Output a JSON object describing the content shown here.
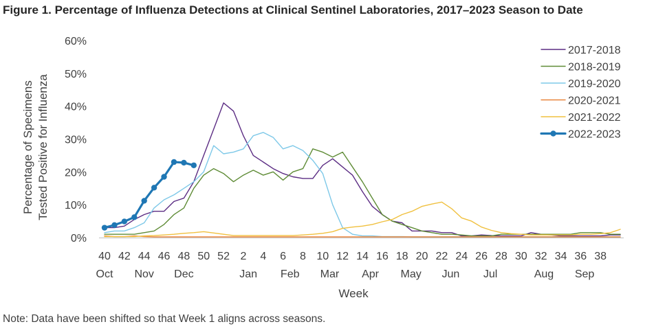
{
  "figure": {
    "title": "Figure 1. Percentage of Influenza Detections at Clinical Sentinel Laboratories, 2017–2023 Season to Date",
    "note": "Note: Data have been shifted so that Week 1 aligns across seasons."
  },
  "chart_data": {
    "type": "line",
    "title": "Figure 1. Percentage of Influenza Detections at Clinical Sentinel Laboratories, 2017–2023 Season to Date",
    "xlabel": "Week",
    "ylabel_lines": [
      "Percentage of Specimens",
      "Tested Positive for Influenza"
    ],
    "ylim": [
      0,
      60
    ],
    "y_ticks": [
      0,
      10,
      20,
      30,
      40,
      50,
      60
    ],
    "y_tick_labels": [
      "0%",
      "10%",
      "20%",
      "30%",
      "40%",
      "50%",
      "60%"
    ],
    "x_count": 53,
    "x_tick_labels": [
      "40",
      "42",
      "44",
      "46",
      "48",
      "50",
      "52",
      "2",
      "4",
      "6",
      "8",
      "10",
      "12",
      "14",
      "16",
      "18",
      "20",
      "22",
      "24",
      "26",
      "28",
      "30",
      "32",
      "34",
      "36",
      "38"
    ],
    "month_labels": [
      {
        "label": "Oct",
        "at": 0
      },
      {
        "label": "Nov",
        "at": 4
      },
      {
        "label": "Dec",
        "at": 8
      },
      {
        "label": "Jan",
        "at": 14.5
      },
      {
        "label": "Feb",
        "at": 18.7
      },
      {
        "label": "Mar",
        "at": 22.7
      },
      {
        "label": "Apr",
        "at": 26.8
      },
      {
        "label": "May",
        "at": 30.9
      },
      {
        "label": "Jun",
        "at": 34.9
      },
      {
        "label": "Jul",
        "at": 38.9
      },
      {
        "label": "Aug",
        "at": 44.3
      },
      {
        "label": "Sep",
        "at": 48.4
      }
    ],
    "legend_position": "top-right",
    "series": [
      {
        "name": "2017-2018",
        "color": "#5B2C83",
        "width": 1.4,
        "markers": false,
        "values": [
          3,
          3,
          3.5,
          5.5,
          7,
          8,
          8,
          11,
          12,
          17,
          25,
          33,
          41,
          38.5,
          31,
          25,
          23,
          21,
          19.5,
          18.5,
          18,
          18,
          22,
          24,
          21.5,
          19,
          14,
          9.5,
          7,
          5,
          4.5,
          2,
          2,
          2,
          1.5,
          1.5,
          0.5,
          0.5,
          0.8,
          0.6,
          0.5,
          0.5,
          0.5,
          1.5,
          1,
          0.8,
          0.5,
          0.5,
          0.5,
          0.5,
          0.5,
          0.8,
          0.8
        ]
      },
      {
        "name": "2018-2019",
        "color": "#5E8B35",
        "width": 1.4,
        "markers": false,
        "values": [
          1,
          1,
          1,
          1,
          1.5,
          2,
          4,
          7,
          9,
          15,
          19,
          21,
          19.5,
          17,
          19,
          20.5,
          19,
          20,
          17.5,
          20,
          21,
          27,
          26,
          24.5,
          26,
          21.5,
          17,
          12,
          7,
          5,
          4,
          3,
          2,
          1.5,
          1,
          1,
          0.8,
          0.5,
          0.5,
          0.5,
          1,
          1,
          1,
          1,
          1,
          1,
          1,
          1,
          1.5,
          1.5,
          1.5,
          1,
          1
        ]
      },
      {
        "name": "2019-2020",
        "color": "#7DC8E8",
        "width": 1.4,
        "markers": false,
        "values": [
          1.5,
          2,
          2,
          3,
          4.5,
          9,
          11.5,
          13,
          15,
          17,
          20,
          28,
          25.5,
          26,
          27,
          31,
          32,
          30.5,
          27,
          28,
          26.5,
          23.5,
          19.5,
          10,
          3,
          1,
          0.5,
          0.5,
          0.3,
          0.3,
          0.3,
          0.2,
          0.2,
          0.2,
          0.2,
          0.2,
          0.2,
          0.2,
          0.2,
          0.2,
          0.2,
          0.2,
          0.2,
          0.2,
          0.2,
          0.2,
          0.2,
          0.2,
          0.2,
          0.2,
          0.2,
          0.2,
          0.2
        ]
      },
      {
        "name": "2020-2021",
        "color": "#E8843A",
        "width": 1.4,
        "markers": false,
        "values": [
          0.5,
          0.3,
          0.3,
          0.5,
          0.3,
          0.2,
          0.2,
          0.2,
          0.2,
          0.2,
          0.2,
          0.2,
          0.2,
          0.2,
          0.2,
          0.2,
          0.2,
          0.2,
          0.2,
          0.2,
          0.2,
          0.2,
          0.2,
          0.2,
          0.2,
          0.2,
          0.2,
          0.2,
          0.2,
          0.2,
          0.2,
          0.2,
          0.2,
          0.2,
          0.2,
          0.2,
          0.2,
          0.2,
          0.2,
          0.2,
          0.2,
          0.2,
          0.2,
          0.2,
          0.2,
          0.2,
          0.2,
          0.2,
          0.2,
          0.2,
          0.2,
          0.2,
          0.2
        ]
      },
      {
        "name": "2021-2022",
        "color": "#F0C03E",
        "width": 1.4,
        "markers": false,
        "values": [
          0.3,
          0.3,
          0.3,
          0.3,
          0.5,
          0.6,
          0.8,
          1,
          1.3,
          1.5,
          1.8,
          1.4,
          1,
          0.6,
          0.6,
          0.6,
          0.6,
          0.6,
          0.6,
          0.6,
          0.8,
          1,
          1.3,
          1.8,
          2.8,
          3.2,
          3.5,
          4,
          4.8,
          5.5,
          7,
          8,
          9.5,
          10.2,
          10.8,
          8.8,
          6,
          5,
          3.2,
          2.2,
          1.5,
          1.2,
          1,
          0.8,
          0.8,
          0.8,
          0.8,
          0.8,
          1,
          1,
          1.2,
          1.5,
          2.5
        ]
      },
      {
        "name": "2022-2023",
        "color": "#1F77B4",
        "width": 3.2,
        "markers": true,
        "values": [
          3,
          3.8,
          4.9,
          6.2,
          11.2,
          15.2,
          18.5,
          23,
          22.8,
          22
        ]
      }
    ]
  }
}
